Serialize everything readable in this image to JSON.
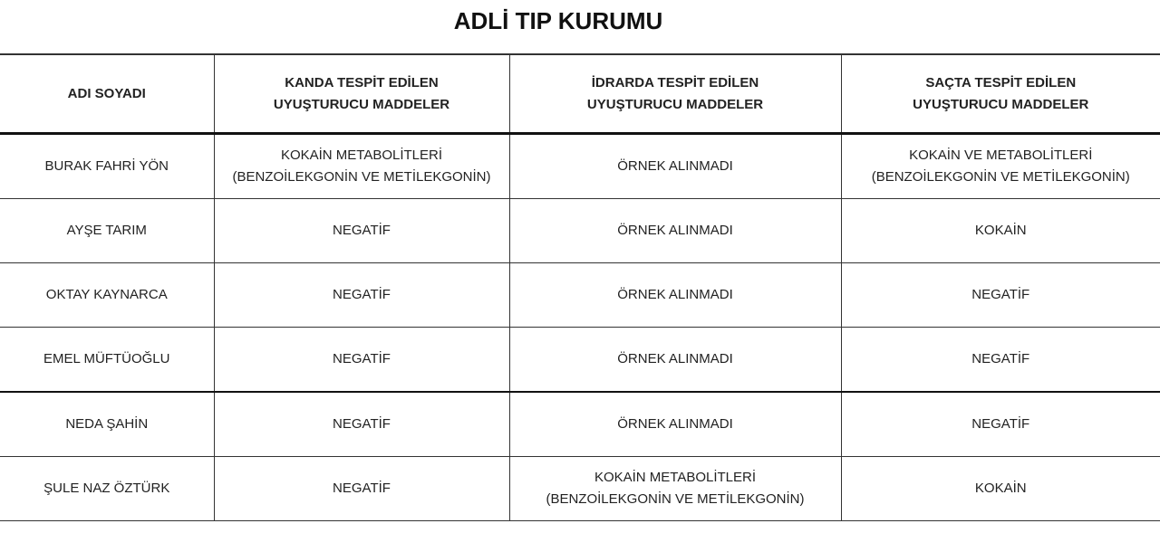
{
  "title": "ADLİ TIP KURUMU",
  "headers": [
    [
      "ADI SOYADI"
    ],
    [
      "KANDA TESPİT EDİLEN",
      "UYUŞTURUCU MADDELER"
    ],
    [
      "İDRARDA TESPİT EDİLEN",
      "UYUŞTURUCU MADDELER"
    ],
    [
      "SAÇTA TESPİT EDİLEN",
      "UYUŞTURUCU MADDELER"
    ]
  ],
  "rows": [
    [
      [
        "BURAK FAHRİ YÖN"
      ],
      [
        "KOKAİN METABOLİTLERİ",
        "(BENZOİLEKGONİN VE METİLEKGONİN)"
      ],
      [
        "ÖRNEK ALINMADI"
      ],
      [
        "KOKAİN VE METABOLİTLERİ",
        "(BENZOİLEKGONİN VE METİLEKGONİN)"
      ]
    ],
    [
      [
        "AYŞE TARIM"
      ],
      [
        "NEGATİF"
      ],
      [
        "ÖRNEK ALINMADI"
      ],
      [
        "KOKAİN"
      ]
    ],
    [
      [
        "OKTAY KAYNARCA"
      ],
      [
        "NEGATİF"
      ],
      [
        "ÖRNEK ALINMADI"
      ],
      [
        "NEGATİF"
      ]
    ],
    [
      [
        "EMEL MÜFTÜOĞLU"
      ],
      [
        "NEGATİF"
      ],
      [
        "ÖRNEK ALINMADI"
      ],
      [
        "NEGATİF"
      ]
    ],
    [
      [
        "NEDA ŞAHİN"
      ],
      [
        "NEGATİF"
      ],
      [
        "ÖRNEK ALINMADI"
      ],
      [
        "NEGATİF"
      ]
    ],
    [
      [
        "ŞULE NAZ ÖZTÜRK"
      ],
      [
        "NEGATİF"
      ],
      [
        "KOKAİN METABOLİTLERİ",
        "(BENZOİLEKGONİN VE METİLEKGONİN)"
      ],
      [
        "KOKAİN"
      ]
    ]
  ]
}
